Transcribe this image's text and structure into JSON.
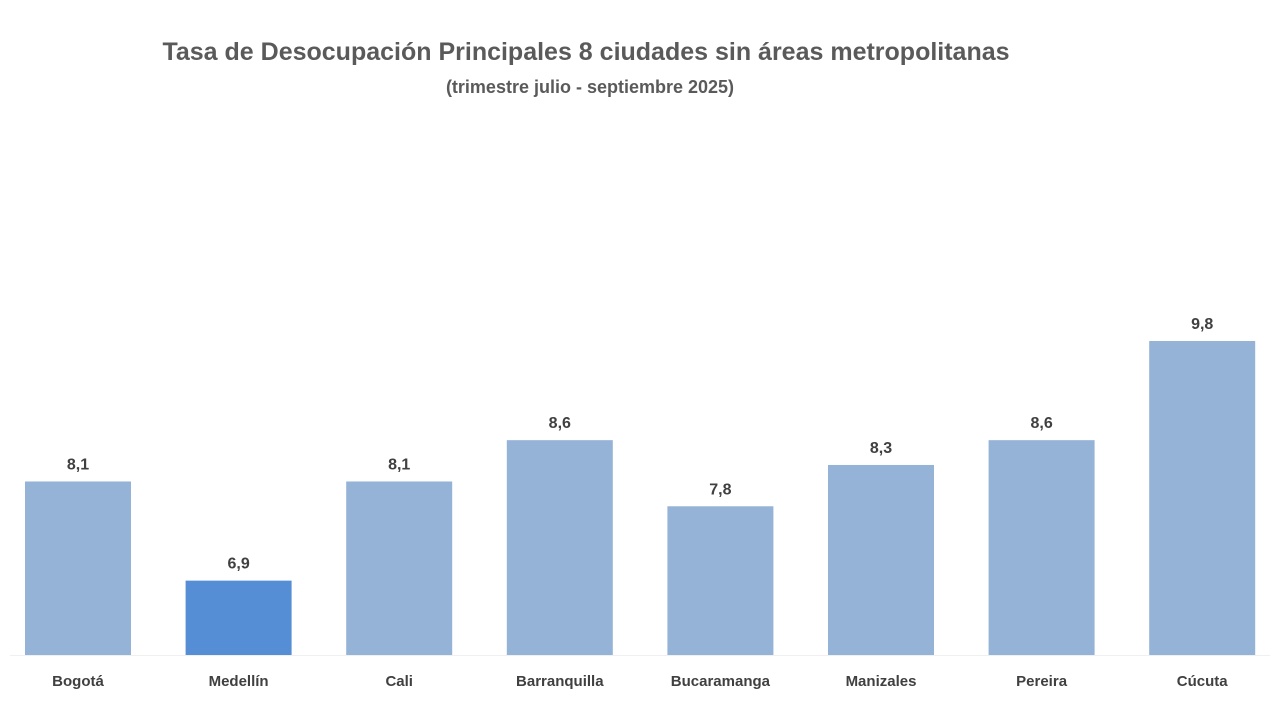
{
  "chart_data": {
    "type": "bar",
    "title": "Tasa de Desocupación Principales 8 ciudades sin áreas metropolitanas",
    "subtitle": "(trimestre  julio - septiembre 2025)",
    "categories": [
      "Bogotá",
      "Medellín",
      "Cali",
      "Barranquilla",
      "Bucaramanga",
      "Manizales",
      "Pereira",
      "Cúcuta"
    ],
    "values": [
      8.1,
      6.9,
      8.1,
      8.6,
      7.8,
      8.3,
      8.6,
      9.8
    ],
    "value_labels": [
      "8,1",
      "6,9",
      "8,1",
      "8,6",
      "7,8",
      "8,3",
      "8,6",
      "9,8"
    ],
    "highlight_category": "Medellín",
    "xlabel": "",
    "ylabel": "",
    "ylim": [
      6,
      10
    ],
    "grid": false,
    "legend": "none",
    "colors": {
      "bar": "#95b3d7",
      "highlight": "#558ed5",
      "text": "#404040",
      "title": "#5a5a5a"
    }
  }
}
